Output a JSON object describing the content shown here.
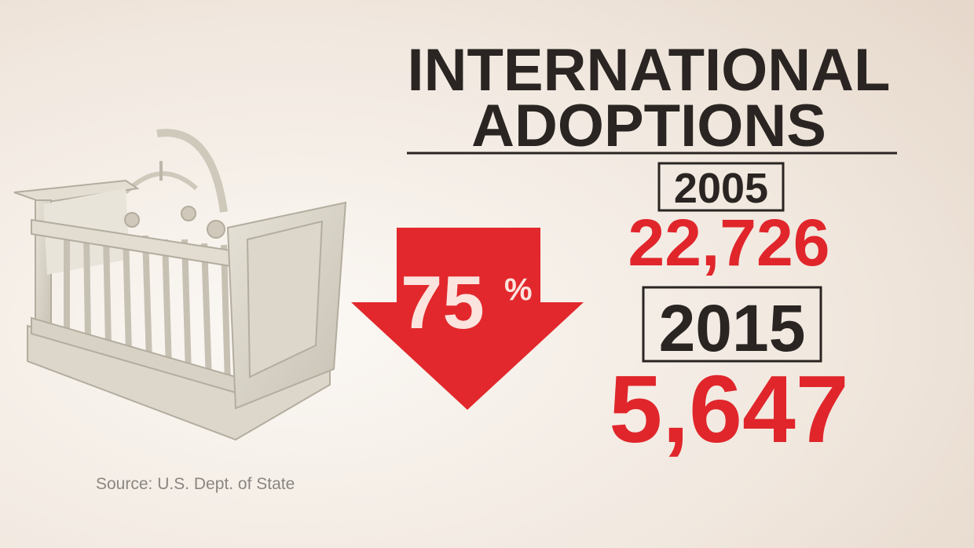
{
  "title": {
    "line1": "INTERNATIONAL",
    "line2": "ADOPTIONS"
  },
  "decline": {
    "number": "75",
    "sign": "%"
  },
  "years": [
    {
      "year": "2005",
      "count": "22,726"
    },
    {
      "year": "2015",
      "count": "5,647"
    }
  ],
  "source": "Source: U.S. Dept. of State"
}
